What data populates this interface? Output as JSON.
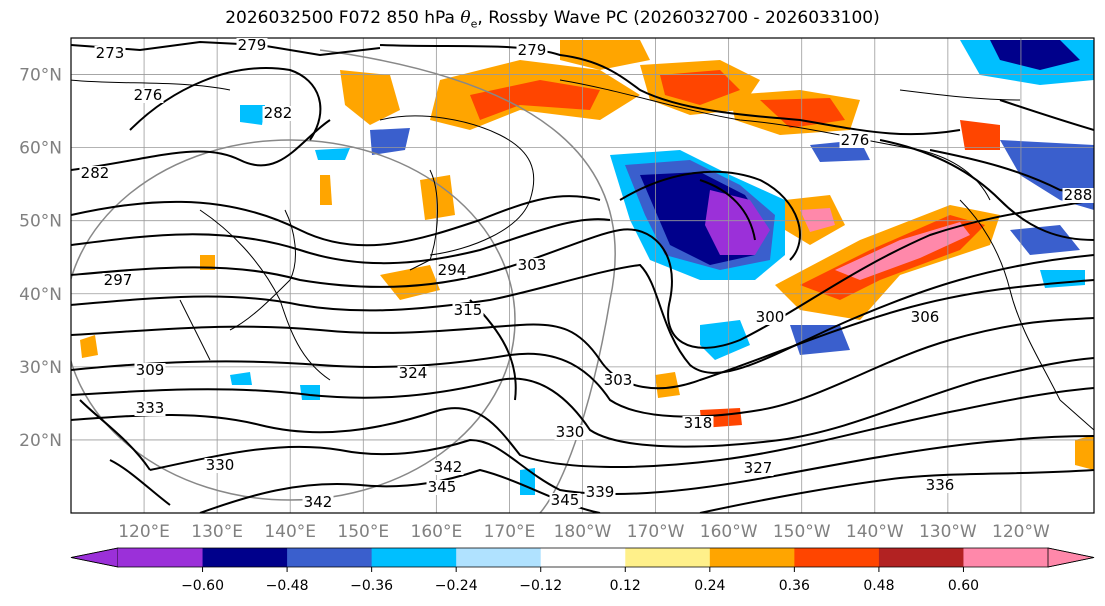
{
  "title": {
    "prefix": "2026032500 F072 850 hPa ",
    "theta": "θ",
    "sub": "e",
    "suffix": ", Rossby Wave PC (2026032700 - 2026033100)"
  },
  "map": {
    "lat_labels": [
      "70°N",
      "60°N",
      "50°N",
      "40°N",
      "30°N",
      "20°N"
    ],
    "lat_values": [
      70,
      60,
      50,
      40,
      30,
      20
    ],
    "lat_range": [
      10,
      75
    ],
    "lon_labels": [
      "120°E",
      "130°E",
      "140°E",
      "150°E",
      "160°E",
      "170°E",
      "180°W",
      "170°W",
      "160°W",
      "150°W",
      "140°W",
      "130°W",
      "120°W"
    ],
    "lon_values": [
      120,
      130,
      140,
      150,
      160,
      170,
      180,
      190,
      200,
      210,
      220,
      230,
      240
    ],
    "lon_range": [
      110,
      250
    ],
    "contour_labels": [
      "273",
      "279",
      "276",
      "282",
      "279",
      "276",
      "282",
      "288",
      "294",
      "303",
      "297",
      "315",
      "306",
      "300",
      "324",
      "309",
      "303",
      "333",
      "330",
      "330",
      "318",
      "327",
      "336",
      "342",
      "345",
      "339",
      "345",
      "342"
    ]
  },
  "colorbar": {
    "ticks": [
      "−0.60",
      "−0.48",
      "−0.36",
      "−0.24",
      "−0.12",
      "0.12",
      "0.24",
      "0.36",
      "0.48",
      "0.60"
    ],
    "colors": [
      "#9b30d9",
      "#00008b",
      "#3a5fcd",
      "#00bfff",
      "#b0e2ff",
      "#ffffff",
      "#fff08a",
      "#ffa500",
      "#ff4500",
      "#b22222",
      "#ff88aa"
    ],
    "extend_low": "#9b30d9",
    "extend_high": "#ff88aa"
  }
}
